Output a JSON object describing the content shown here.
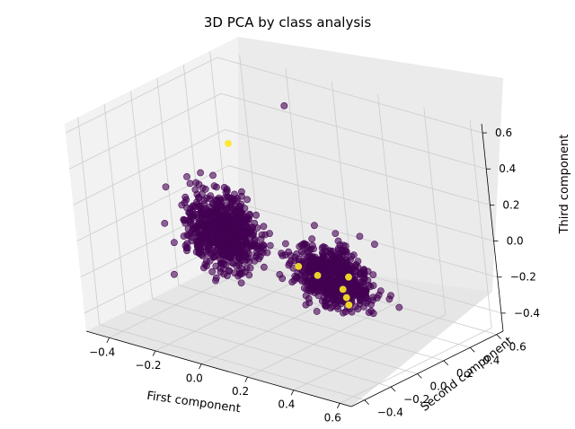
{
  "chart_data": {
    "type": "scatter",
    "projection": "3d",
    "title": "3D PCA by class analysis",
    "xlabel": "First component",
    "ylabel": "Second component",
    "zlabel": "Third component",
    "x_ticks": [
      "−0.4",
      "−0.2",
      "0.0",
      "0.2",
      "0.4",
      "0.6"
    ],
    "y_ticks": [
      "−0.4",
      "−0.2",
      "0.0",
      "0.2",
      "0.4",
      "0.6"
    ],
    "z_ticks": [
      "−0.4",
      "−0.2",
      "0.0",
      "0.2",
      "0.4",
      "0.6"
    ],
    "grid": true,
    "legend": "none",
    "colors": {
      "class_0": "#440154",
      "class_1": "#fde725",
      "pane": "#f2f2f2",
      "grid": "#cccccc"
    },
    "series": [
      {
        "color": "#440154",
        "clusters": [
          {
            "center": [
              -0.15,
              0.0,
              0.0
            ],
            "spread": [
              0.15,
              0.12,
              0.2
            ],
            "count": 700
          },
          {
            "center": [
              0.35,
              -0.05,
              -0.05
            ],
            "spread": [
              0.15,
              0.1,
              0.16
            ],
            "count": 650
          }
        ],
        "outliers": [
          [
            -0.1,
            0.45,
            0.55
          ],
          [
            0.55,
            -0.05,
            0.2
          ],
          [
            0.6,
            0.0,
            -0.15
          ],
          [
            -0.45,
            0.1,
            0.1
          ]
        ]
      },
      {
        "color": "#fde725",
        "points": [
          [
            -0.15,
            0.1,
            0.45
          ],
          [
            0.2,
            -0.05,
            -0.05
          ],
          [
            0.25,
            0.0,
            -0.1
          ],
          [
            0.45,
            -0.15,
            -0.05
          ],
          [
            0.45,
            -0.1,
            0.0
          ],
          [
            0.5,
            -0.2,
            -0.1
          ],
          [
            0.4,
            -0.05,
            -0.15
          ]
        ]
      }
    ]
  }
}
